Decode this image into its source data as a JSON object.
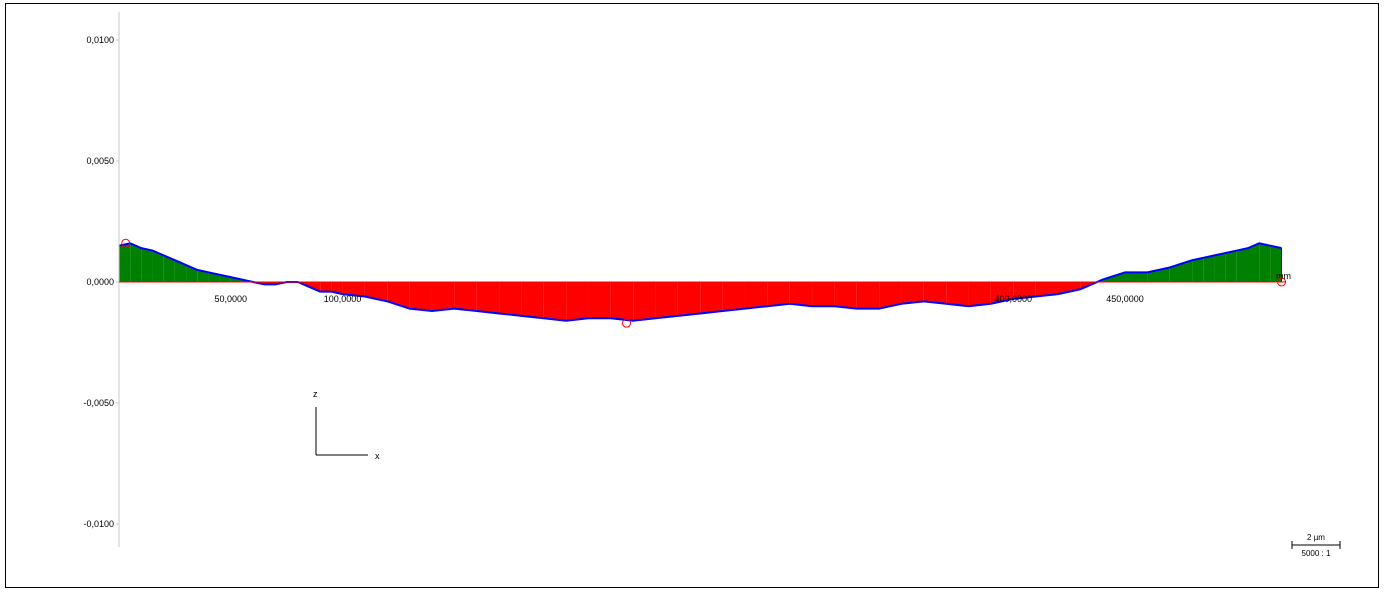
{
  "chart_data": {
    "type": "area",
    "title": "",
    "xlabel": "",
    "ylabel": "",
    "x_unit": "mm",
    "xlim": [
      0,
      522
    ],
    "ylim": [
      -0.011,
      0.011
    ],
    "yticks": [
      0.01,
      0.005,
      0.0,
      -0.005,
      -0.01
    ],
    "ytick_labels": [
      "0,0100",
      "0,0050",
      "0,0000",
      "-0,0050",
      "-0,0100"
    ],
    "xticks": [
      50,
      100,
      400,
      450
    ],
    "xtick_labels": [
      "50,0000",
      "100,0000",
      "400,0000",
      "450,0000"
    ],
    "grid": false,
    "colors": {
      "above": "#008000",
      "below": "#ff0000",
      "profile": "#0000ff",
      "marker": "#ff0000"
    },
    "profile": {
      "x": [
        0,
        5,
        10,
        15,
        20,
        25,
        30,
        35,
        40,
        45,
        50,
        55,
        60,
        65,
        70,
        75,
        80,
        85,
        90,
        95,
        100,
        110,
        120,
        130,
        140,
        150,
        160,
        170,
        180,
        190,
        200,
        210,
        220,
        230,
        240,
        250,
        260,
        270,
        280,
        290,
        300,
        310,
        320,
        330,
        340,
        350,
        360,
        370,
        380,
        390,
        400,
        410,
        420,
        430,
        440,
        450,
        460,
        470,
        480,
        485,
        490,
        495,
        500,
        505,
        510,
        515,
        520
      ],
      "z": [
        0.0015,
        0.0016,
        0.0014,
        0.0013,
        0.0011,
        0.0009,
        0.0007,
        0.0005,
        0.0004,
        0.0003,
        0.0002,
        0.0001,
        0.0,
        -0.0001,
        -0.0001,
        0.0,
        0.0,
        -0.0002,
        -0.0004,
        -0.0004,
        -0.0005,
        -0.0006,
        -0.0008,
        -0.0011,
        -0.0012,
        -0.0011,
        -0.0012,
        -0.0013,
        -0.0014,
        -0.0015,
        -0.0016,
        -0.0015,
        -0.0015,
        -0.0016,
        -0.0015,
        -0.0014,
        -0.0013,
        -0.0012,
        -0.0011,
        -0.001,
        -0.0009,
        -0.001,
        -0.001,
        -0.0011,
        -0.0011,
        -0.0009,
        -0.0008,
        -0.0009,
        -0.001,
        -0.0009,
        -0.0007,
        -0.0006,
        -0.0005,
        -0.0003,
        0.0001,
        0.0004,
        0.0004,
        0.0006,
        0.0009,
        0.001,
        0.0011,
        0.0012,
        0.0013,
        0.0014,
        0.0016,
        0.0015,
        0.0014
      ]
    },
    "markers": [
      {
        "x": 3,
        "z": 0.0016
      },
      {
        "x": 227,
        "z": -0.0017
      },
      {
        "x": 520,
        "z": 0.0
      }
    ]
  },
  "axes_indicator": {
    "z_label": "z",
    "x_label": "x"
  },
  "scale_bar": {
    "length_label": "2 µm",
    "ratio_label": "5000 : 1"
  },
  "unit_label": "mm"
}
